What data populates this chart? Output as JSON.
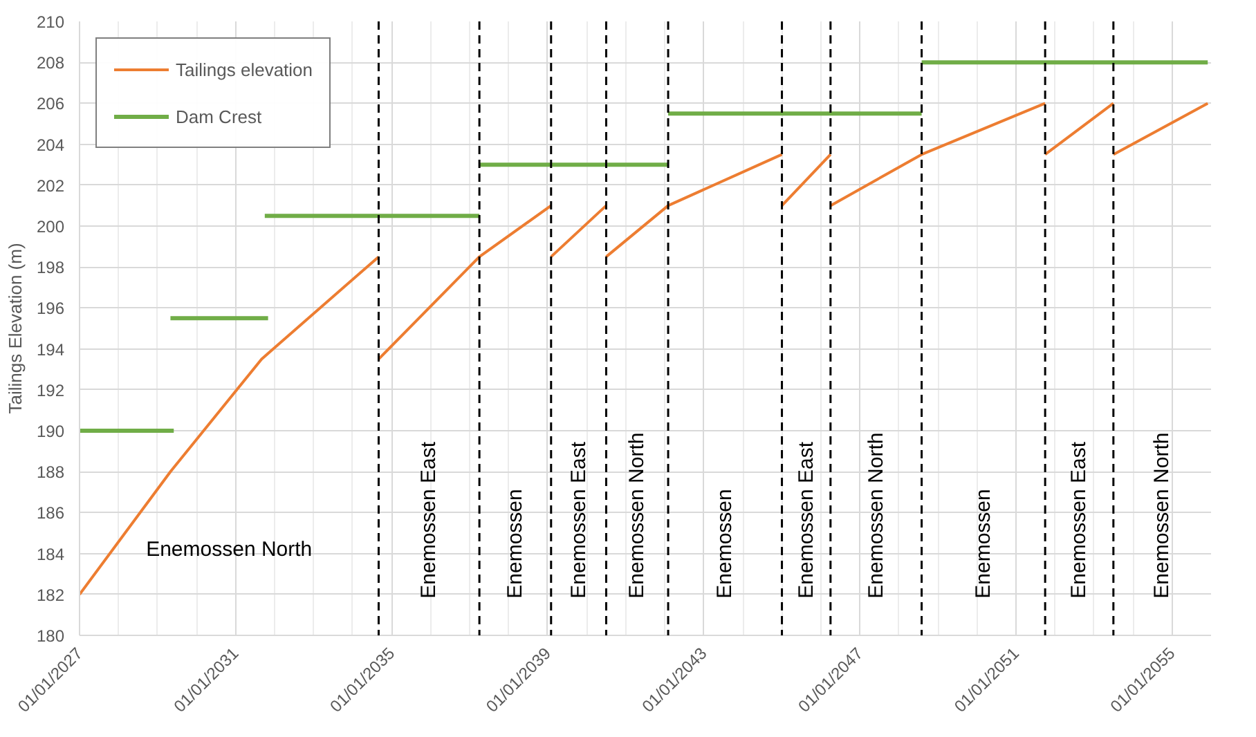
{
  "chart_data": {
    "type": "line",
    "ylabel": "Tailings Elevation (m)",
    "series": [
      {
        "name": "Tailings elevation",
        "color": "#ed7d31",
        "x": [
          "2027-01",
          "2029-05",
          "2031-09",
          "2034-09",
          null,
          "2034-09",
          "2037-04",
          "2039-02",
          null,
          "2039-02",
          "2040-07",
          null,
          "2040-07",
          "2042-02",
          "2045-01",
          null,
          "2045-01",
          "2046-04",
          null,
          "2046-04",
          "2048-08",
          "2051-10",
          null,
          "2051-10",
          "2053-07",
          null,
          "2053-07",
          "2055-12"
        ],
        "values": [
          182,
          188,
          193.5,
          198.5,
          null,
          193.5,
          198.5,
          201,
          null,
          198.5,
          201,
          null,
          198.5,
          201,
          203.5,
          null,
          201,
          203.5,
          null,
          201,
          203.5,
          206,
          null,
          203.5,
          206,
          null,
          203.5,
          206
        ]
      },
      {
        "name": "Dam Crest",
        "color": "#70ad47",
        "x": [
          "2027-01",
          "2029-06",
          null,
          "2029-05",
          "2031-11",
          null,
          "2031-10",
          "2037-04",
          null,
          "2037-04",
          "2042-02",
          null,
          "2042-02",
          "2048-08",
          null,
          "2048-08",
          "2055-12"
        ],
        "values": [
          190,
          190,
          null,
          195.5,
          195.5,
          null,
          200.5,
          200.5,
          null,
          203,
          203,
          null,
          205.5,
          205.5,
          null,
          208,
          208
        ]
      }
    ],
    "xlim": [
      "2027-01-01",
      "2056-01-01"
    ],
    "xticks": [
      {
        "value": "2027-01-01",
        "label": "01/01/2027"
      },
      {
        "value": "2031-01-01",
        "label": "01/01/2031"
      },
      {
        "value": "2035-01-01",
        "label": "01/01/2035"
      },
      {
        "value": "2039-01-01",
        "label": "01/01/2039"
      },
      {
        "value": "2043-01-01",
        "label": "01/01/2043"
      },
      {
        "value": "2047-01-01",
        "label": "01/01/2047"
      },
      {
        "value": "2051-01-01",
        "label": "01/01/2051"
      },
      {
        "value": "2055-01-01",
        "label": "01/01/2055"
      }
    ],
    "ylim": [
      180,
      210
    ],
    "yticks": [
      180,
      182,
      184,
      186,
      188,
      190,
      192,
      194,
      196,
      198,
      200,
      202,
      204,
      206,
      208,
      210
    ],
    "ref_lines": [
      {
        "axis": "x",
        "value": "2034-09",
        "color": "#000000",
        "line_style": "dashed"
      },
      {
        "axis": "x",
        "value": "2037-04",
        "color": "#000000",
        "line_style": "dashed"
      },
      {
        "axis": "x",
        "value": "2039-02",
        "color": "#000000",
        "line_style": "dashed"
      },
      {
        "axis": "x",
        "value": "2040-07",
        "color": "#000000",
        "line_style": "dashed"
      },
      {
        "axis": "x",
        "value": "2042-02",
        "color": "#000000",
        "line_style": "dashed"
      },
      {
        "axis": "x",
        "value": "2045-01",
        "color": "#000000",
        "line_style": "dashed"
      },
      {
        "axis": "x",
        "value": "2046-04",
        "color": "#000000",
        "line_style": "dashed"
      },
      {
        "axis": "x",
        "value": "2048-08",
        "color": "#000000",
        "line_style": "dashed"
      },
      {
        "axis": "x",
        "value": "2051-10",
        "color": "#000000",
        "line_style": "dashed"
      },
      {
        "axis": "x",
        "value": "2053-07",
        "color": "#000000",
        "line_style": "dashed"
      }
    ],
    "annotations": [
      "Enemossen North",
      "Enemossen East",
      "Enemossen",
      "Enemossen East",
      "Enemossen North",
      "Enemossen",
      "Enemossen East",
      "Enemossen North",
      "Enemossen",
      "Enemossen East",
      "Enemossen North"
    ],
    "grid": true,
    "legend": "top left",
    "line_style": "solid",
    "marker": "none"
  }
}
